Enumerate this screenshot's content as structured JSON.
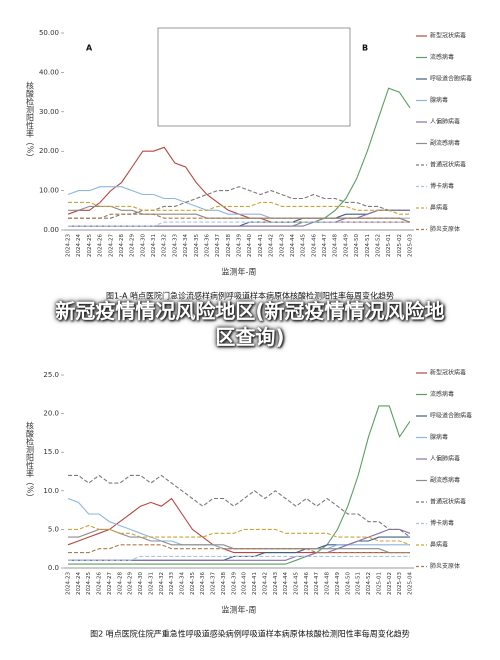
{
  "headline": "新冠疫情情况风险地区(新冠疫情情况风险地区查询)",
  "chart_data": [
    {
      "type": "line",
      "title": "图1-A 哨点医院门急诊流感样病例呼吸道样本病原体核酸检测阳性率每周变化趋势",
      "ylabel": "核酸检测阳性率（%）",
      "xlabel": "监测年-周",
      "annotations": [
        "A",
        "B"
      ],
      "categories": [
        "2024-23",
        "2024-24",
        "2024-25",
        "2024-26",
        "2024-27",
        "2024-28",
        "2024-29",
        "2024-30",
        "2024-31",
        "2024-32",
        "2024-33",
        "2024-34",
        "2024-35",
        "2024-36",
        "2024-37",
        "2024-38",
        "2024-39",
        "2024-40",
        "2024-41",
        "2024-42",
        "2024-43",
        "2024-44",
        "2024-45",
        "2024-46",
        "2024-47",
        "2024-48",
        "2024-49",
        "2024-50",
        "2024-51",
        "2024-52",
        "2025-01",
        "2025-02",
        "2025-03"
      ],
      "ylim": [
        0,
        50
      ],
      "yticks": [
        {
          "value": 0,
          "label": "0.00"
        },
        {
          "value": 10,
          "label": "10.00"
        },
        {
          "value": 20,
          "label": "20.00"
        },
        {
          "value": 30,
          "label": "30.00"
        },
        {
          "value": 40,
          "label": "40.00"
        },
        {
          "value": 50,
          "label": "50.00"
        }
      ],
      "series": [
        {
          "name": "新型冠状病毒",
          "color": "#b5483f",
          "dash": false,
          "values": [
            4,
            5,
            5,
            7,
            10,
            12,
            16,
            20,
            20,
            21,
            17,
            16,
            12,
            9,
            7,
            5,
            4,
            3,
            3,
            2,
            2,
            2,
            2,
            2,
            2,
            2,
            2,
            2,
            2,
            2,
            2,
            2,
            2
          ]
        },
        {
          "name": "流感病毒",
          "color": "#5b9e62",
          "dash": false,
          "values": [
            1,
            1,
            1,
            1,
            1,
            1,
            1,
            1,
            1,
            1,
            1,
            1,
            1,
            1,
            1,
            1,
            1,
            1,
            1,
            1,
            1,
            1,
            2,
            2,
            3,
            5,
            8,
            13,
            20,
            28,
            36,
            35,
            31
          ]
        },
        {
          "name": "呼吸道合胞病毒",
          "color": "#3f5f86",
          "dash": false,
          "values": [
            1,
            1,
            1,
            1,
            1,
            1,
            1,
            1,
            1,
            1,
            1,
            1,
            1,
            1,
            1,
            1,
            1,
            2,
            2,
            2,
            2,
            2,
            3,
            3,
            3,
            3,
            4,
            4,
            4,
            5,
            5,
            5,
            5
          ]
        },
        {
          "name": "腺病毒",
          "color": "#8db6de",
          "dash": false,
          "values": [
            9,
            10,
            10,
            11,
            11,
            11,
            10,
            9,
            9,
            8,
            8,
            7,
            6,
            5,
            5,
            4,
            4,
            4,
            4,
            3,
            3,
            3,
            3,
            3,
            3,
            3,
            3,
            3,
            3,
            3,
            3,
            3,
            3
          ]
        },
        {
          "name": "人偏肺病毒",
          "color": "#8a6fb0",
          "dash": false,
          "values": [
            1,
            1,
            1,
            1,
            1,
            1,
            1,
            1,
            1,
            1,
            1,
            1,
            1,
            1,
            1,
            1,
            1,
            1,
            1,
            1,
            1,
            1,
            1,
            2,
            2,
            2,
            3,
            3,
            4,
            5,
            5,
            5,
            5
          ]
        },
        {
          "name": "副流感病毒",
          "color": "#8c8c8c",
          "dash": false,
          "values": [
            5,
            5,
            6,
            6,
            6,
            5,
            5,
            4,
            4,
            4,
            4,
            4,
            4,
            3,
            3,
            3,
            3,
            3,
            3,
            3,
            3,
            3,
            3,
            3,
            3,
            3,
            3,
            3,
            3,
            3,
            3,
            3,
            2
          ]
        },
        {
          "name": "普通冠状病毒",
          "color": "#7a7a7a",
          "dash": true,
          "values": [
            3,
            3,
            3,
            3,
            3,
            4,
            4,
            5,
            5,
            6,
            6,
            7,
            8,
            9,
            10,
            10,
            11,
            10,
            9,
            10,
            9,
            8,
            8,
            9,
            8,
            8,
            7,
            7,
            6,
            6,
            5,
            5,
            5
          ]
        },
        {
          "name": "博卡病毒",
          "color": "#a9c4e0",
          "dash": true,
          "values": [
            1,
            1,
            1,
            1,
            1,
            1,
            1,
            1,
            1,
            2,
            2,
            2,
            2,
            2,
            2,
            2,
            2,
            2,
            2,
            2,
            2,
            2,
            2,
            2,
            2,
            2,
            2,
            2,
            2,
            2,
            2,
            2,
            2
          ]
        },
        {
          "name": "鼻病毒",
          "color": "#c9a43c",
          "dash": true,
          "values": [
            7,
            7,
            7,
            6,
            6,
            6,
            6,
            5,
            5,
            5,
            5,
            5,
            5,
            5,
            6,
            6,
            6,
            6,
            7,
            7,
            6,
            6,
            6,
            6,
            6,
            6,
            6,
            5,
            5,
            5,
            5,
            4,
            4
          ]
        },
        {
          "name": "肺炎支原体",
          "color": "#b07a4a",
          "dash": true,
          "values": [
            3,
            3,
            3,
            3,
            4,
            4,
            4,
            4,
            4,
            3,
            3,
            3,
            3,
            3,
            3,
            3,
            3,
            3,
            3,
            3,
            3,
            3,
            3,
            3,
            3,
            3,
            3,
            3,
            3,
            3,
            3,
            3,
            2
          ]
        }
      ]
    },
    {
      "type": "line",
      "title": "图2 哨点医院住院严重急性呼吸道感染病例呼吸道样本病原体核酸检测阳性率每周变化趋势",
      "ylabel": "核酸检测阳性率（%）",
      "xlabel": "监测年-周",
      "categories": [
        "2024-23",
        "2024-24",
        "2024-25",
        "2024-26",
        "2024-27",
        "2024-28",
        "2024-29",
        "2024-30",
        "2024-31",
        "2024-32",
        "2024-33",
        "2024-34",
        "2024-35",
        "2024-36",
        "2024-37",
        "2024-38",
        "2024-39",
        "2024-40",
        "2024-41",
        "2024-42",
        "2024-43",
        "2024-44",
        "2024-45",
        "2024-46",
        "2024-47",
        "2024-48",
        "2024-49",
        "2024-50",
        "2024-51",
        "2024-52",
        "2025-01",
        "2025-02",
        "2025-03",
        "2025-04"
      ],
      "ylim": [
        0,
        25
      ],
      "yticks": [
        {
          "value": 0,
          "label": "0.0"
        },
        {
          "value": 5,
          "label": "5.0"
        },
        {
          "value": 10,
          "label": "10.0"
        },
        {
          "value": 15,
          "label": "15.0"
        },
        {
          "value": 20,
          "label": "20.0"
        },
        {
          "value": 25,
          "label": "25.0"
        }
      ],
      "series": [
        {
          "name": "新型冠状病毒",
          "color": "#b5483f",
          "dash": false,
          "values": [
            3,
            3.5,
            4,
            4.5,
            5,
            6,
            7,
            8,
            8.5,
            8,
            9,
            7,
            5,
            4,
            3,
            2.5,
            2,
            2,
            2,
            2,
            2,
            2,
            2,
            2,
            2,
            2,
            2,
            2,
            2,
            2,
            2,
            2,
            2,
            2
          ]
        },
        {
          "name": "流感病毒",
          "color": "#5b9e62",
          "dash": false,
          "values": [
            0.5,
            0.5,
            0.5,
            0.5,
            0.5,
            0.5,
            0.5,
            0.5,
            0.5,
            0.5,
            0.5,
            0.5,
            0.5,
            0.5,
            0.5,
            0.5,
            0.5,
            0.5,
            0.5,
            0.5,
            0.5,
            0.5,
            1,
            1.5,
            2,
            3,
            5,
            8,
            12,
            17,
            21,
            21,
            17,
            19
          ]
        },
        {
          "name": "呼吸道合胞病毒",
          "color": "#3f5f86",
          "dash": false,
          "values": [
            1,
            1,
            1,
            1,
            1,
            1,
            1,
            1,
            1,
            1,
            1,
            1,
            1,
            1,
            1,
            1,
            1.5,
            1.5,
            1.5,
            2,
            2,
            2,
            2,
            2.5,
            2.5,
            3,
            3,
            3,
            3.5,
            3.5,
            4,
            4,
            4,
            4
          ]
        },
        {
          "name": "腺病毒",
          "color": "#8db6de",
          "dash": false,
          "values": [
            9,
            8.5,
            7,
            7,
            6,
            5.5,
            5,
            4.5,
            4,
            3.5,
            3.5,
            3,
            3,
            3,
            3,
            2.5,
            2.5,
            2.5,
            2.5,
            2.5,
            2.5,
            2.5,
            2.5,
            2.5,
            2.5,
            2.5,
            3,
            3,
            3,
            3,
            3,
            3,
            3,
            3
          ]
        },
        {
          "name": "人偏肺病毒",
          "color": "#8a6fb0",
          "dash": false,
          "values": [
            1,
            1,
            1,
            1,
            1,
            1,
            1,
            1,
            1,
            1,
            1,
            1,
            1,
            1,
            1,
            1,
            1,
            1,
            1,
            1,
            1,
            1,
            1.5,
            1.5,
            2,
            2,
            2.5,
            3,
            3.5,
            4,
            4.5,
            5,
            5,
            4.5
          ]
        },
        {
          "name": "副流感病毒",
          "color": "#8c8c8c",
          "dash": false,
          "values": [
            4,
            4,
            4.5,
            5,
            5,
            4.5,
            4,
            4,
            3.5,
            3.5,
            3,
            3,
            3,
            3,
            3,
            3,
            2.5,
            2.5,
            2.5,
            2.5,
            2.5,
            2.5,
            2.5,
            2.5,
            2.5,
            2.5,
            2.5,
            2.5,
            2.5,
            2.5,
            2.5,
            2,
            2,
            2
          ]
        },
        {
          "name": "普通冠状病毒",
          "color": "#7a7a7a",
          "dash": true,
          "values": [
            12,
            12,
            11,
            12,
            11,
            11,
            12,
            12,
            11,
            12,
            11,
            10,
            9,
            8,
            9,
            9,
            8,
            9,
            10,
            9,
            10,
            9,
            8,
            9,
            8,
            9,
            8,
            7,
            7,
            6,
            6,
            5,
            5,
            4
          ]
        },
        {
          "name": "博卡病毒",
          "color": "#a9c4e0",
          "dash": true,
          "values": [
            1,
            1,
            1,
            1,
            1,
            1,
            1,
            1.5,
            1.5,
            1.5,
            1.5,
            1.5,
            1.5,
            1.5,
            1.5,
            1.5,
            1.5,
            1.5,
            1.5,
            1.5,
            1.5,
            1.5,
            1.5,
            1.5,
            1.5,
            1.5,
            1.5,
            1.5,
            1.5,
            1.5,
            1.5,
            1.5,
            1.5,
            1.5
          ]
        },
        {
          "name": "鼻病毒",
          "color": "#c9a43c",
          "dash": true,
          "values": [
            5,
            5,
            5.5,
            5,
            5,
            4.5,
            4.5,
            4,
            4,
            4,
            4,
            4,
            4,
            4,
            4.5,
            4.5,
            4.5,
            5,
            5,
            5,
            5,
            4.5,
            4.5,
            4.5,
            4.5,
            4.5,
            4,
            4,
            4,
            4,
            3.5,
            3.5,
            3.5,
            3
          ]
        },
        {
          "name": "肺炎支原体",
          "color": "#b07a4a",
          "dash": true,
          "values": [
            2,
            2,
            2,
            2.5,
            2.5,
            3,
            3,
            3,
            3,
            3,
            2.5,
            2.5,
            2.5,
            2.5,
            2.5,
            2.5,
            2.5,
            2.5,
            2.5,
            2.5,
            2.5,
            2.5,
            2.5,
            2.5,
            2,
            2,
            2,
            2,
            2,
            2,
            2,
            2,
            2,
            2
          ]
        }
      ]
    }
  ]
}
